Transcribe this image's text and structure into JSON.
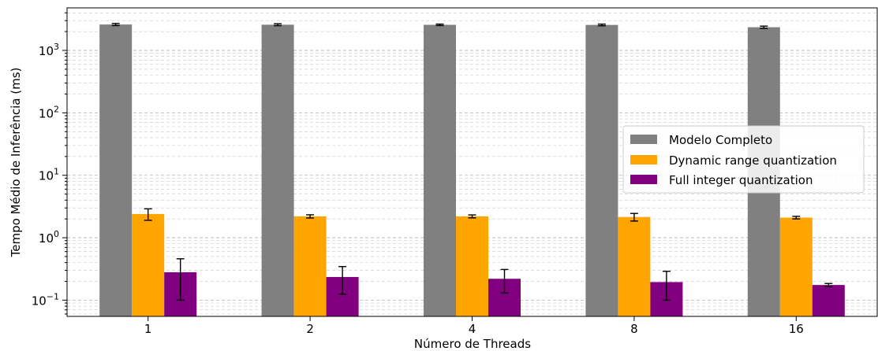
{
  "chart_data": {
    "type": "bar",
    "title": "",
    "xlabel": "Número de Threads",
    "ylabel": "Tempo Médio de Inferência (ms)",
    "yscale": "log",
    "ylim": [
      0.055,
      4800
    ],
    "grid": "both (dashed)",
    "legend_position": "center-right",
    "categories": [
      "1",
      "2",
      "4",
      "8",
      "16"
    ],
    "y_tick_labels": [
      {
        "value": 0.1,
        "base": "10",
        "exp": "−1"
      },
      {
        "value": 1,
        "base": "10",
        "exp": "0"
      },
      {
        "value": 10,
        "base": "10",
        "exp": "1"
      },
      {
        "value": 100,
        "base": "10",
        "exp": "2"
      },
      {
        "value": 1000,
        "base": "10",
        "exp": "3"
      }
    ],
    "series": [
      {
        "name": "Modelo Completo",
        "color": "#808080",
        "values": [
          2600,
          2580,
          2570,
          2560,
          2350
        ],
        "errors": [
          100,
          90,
          70,
          80,
          100
        ]
      },
      {
        "name": "Dynamic range quantization",
        "color": "#ffa500",
        "values": [
          2.4,
          2.2,
          2.2,
          2.15,
          2.1
        ],
        "errors": [
          0.5,
          0.13,
          0.12,
          0.3,
          0.1
        ]
      },
      {
        "name": "Full integer quantization",
        "color": "#800080",
        "values": [
          0.28,
          0.235,
          0.22,
          0.195,
          0.175
        ],
        "errors": [
          0.18,
          0.11,
          0.09,
          0.095,
          0.01
        ]
      }
    ]
  }
}
